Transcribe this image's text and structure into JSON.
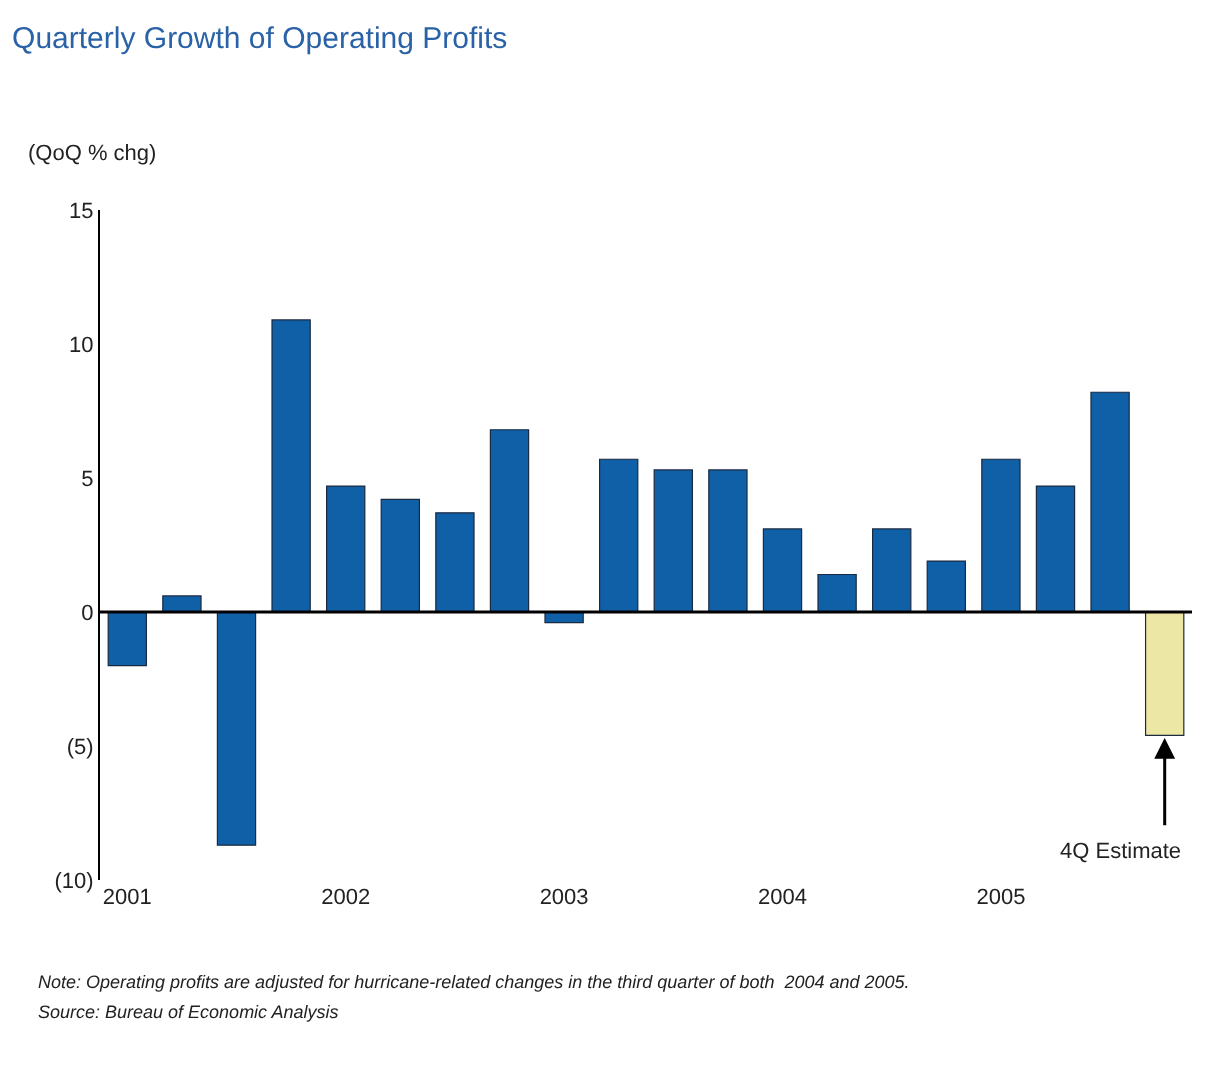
{
  "chart_data": {
    "type": "bar",
    "title": "Quarterly Growth of Operating Profits",
    "ylabel": "(QoQ % chg)",
    "categories": [
      "2001",
      null,
      null,
      null,
      "2002",
      null,
      null,
      null,
      "2003",
      null,
      null,
      null,
      "2004",
      null,
      null,
      null,
      "2005",
      null,
      null,
      null
    ],
    "values": [
      -2.0,
      0.6,
      -8.7,
      10.9,
      4.7,
      4.2,
      3.7,
      6.8,
      -0.4,
      5.7,
      5.3,
      5.3,
      3.1,
      1.4,
      3.1,
      1.9,
      5.7,
      4.7,
      8.2,
      -4.6
    ],
    "colors": [
      "#1060a8",
      "#1060a8",
      "#1060a8",
      "#1060a8",
      "#1060a8",
      "#1060a8",
      "#1060a8",
      "#1060a8",
      "#1060a8",
      "#1060a8",
      "#1060a8",
      "#1060a8",
      "#1060a8",
      "#1060a8",
      "#1060a8",
      "#1060a8",
      "#1060a8",
      "#1060a8",
      "#1060a8",
      "#ede7a6"
    ],
    "ylim": [
      -10,
      15
    ],
    "yticks": [
      15,
      10,
      5,
      0,
      {
        "value": -5,
        "label": "(5)"
      },
      {
        "value": -10,
        "label": "(10)"
      }
    ],
    "legend": false,
    "ref_lines": [
      {
        "axis": "y",
        "value": 0,
        "color": "#000000"
      }
    ],
    "annotations": [
      "4Q Estimate",
      "Note: Operating profits are adjusted for hurricane-related changes in the third quarter of both  2004 and 2005.",
      "Source: Bureau of Economic Analysis"
    ]
  }
}
